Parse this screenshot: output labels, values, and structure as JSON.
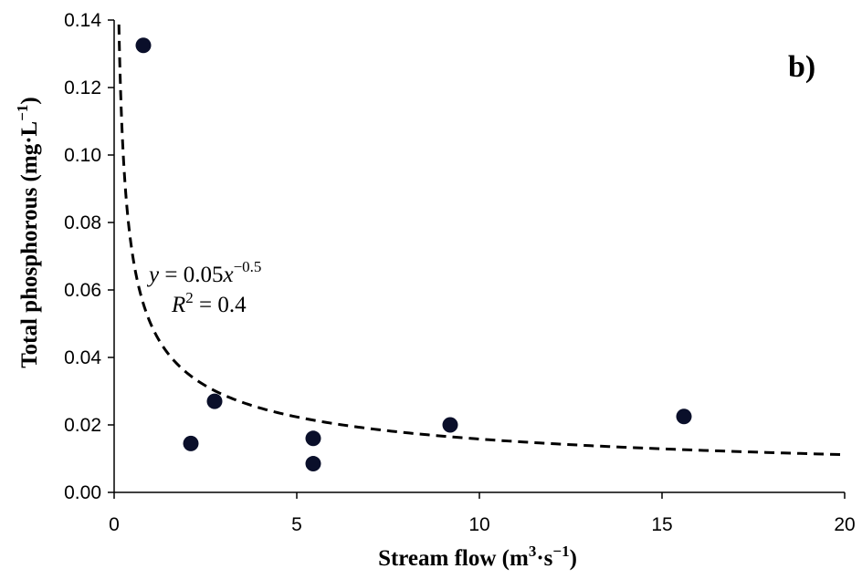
{
  "chart_data": {
    "type": "scatter",
    "panel_label": "b)",
    "xlabel": {
      "text": "Stream flow (m",
      "sup1": "3",
      "mid": "·s",
      "sup2": "−1",
      "end": ")"
    },
    "ylabel": {
      "text": "Total phosphorous (mg·L",
      "sup": "−1",
      "end": ")"
    },
    "xlim": [
      0,
      20
    ],
    "ylim": [
      0,
      0.14
    ],
    "xticks": [
      0,
      5,
      10,
      15,
      20
    ],
    "xtick_labels": [
      "0",
      "5",
      "10",
      "15",
      "20"
    ],
    "yticks": [
      0,
      0.02,
      0.04,
      0.06,
      0.08,
      0.1,
      0.12,
      0.14
    ],
    "ytick_labels": [
      "0.00",
      "0.02",
      "0.04",
      "0.06",
      "0.08",
      "0.10",
      "0.12",
      "0.14"
    ],
    "points": [
      {
        "x": 0.8,
        "y": 0.1325
      },
      {
        "x": 2.1,
        "y": 0.0145
      },
      {
        "x": 2.75,
        "y": 0.027
      },
      {
        "x": 5.45,
        "y": 0.016
      },
      {
        "x": 5.45,
        "y": 0.0085
      },
      {
        "x": 9.2,
        "y": 0.02
      },
      {
        "x": 15.6,
        "y": 0.0225
      }
    ],
    "trendline": {
      "style": "dashed",
      "coefficient": 0.05,
      "exponent": -0.5,
      "x_range": [
        0.13,
        20
      ]
    },
    "equation": {
      "y": "y",
      "eq1": " = 0.05",
      "x": "x",
      "exp": "−0.5"
    },
    "r_squared": {
      "r": "R",
      "sup": "2",
      "text": " = 0.4"
    },
    "grid": false,
    "legend": "none",
    "colors": {
      "points": "#0a0f2a",
      "line": "#000000",
      "axis": "#000000"
    }
  }
}
